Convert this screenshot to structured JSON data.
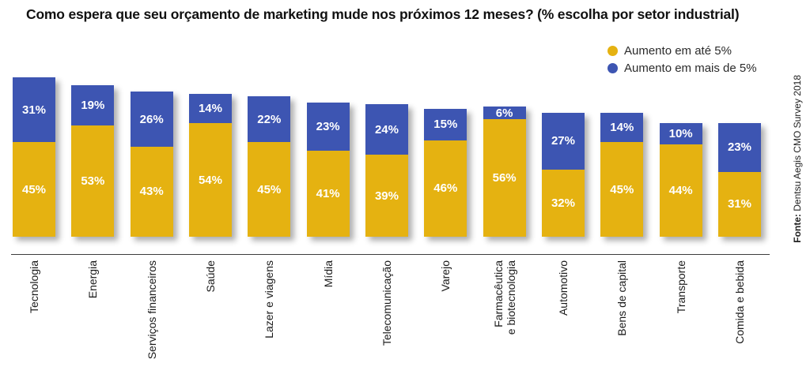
{
  "title": "Como espera que seu orçamento de marketing mude nos próximos 12 meses? (% escolha por setor industrial)",
  "legend": [
    {
      "label": "Aumento em até 5%",
      "color": "#E5B211"
    },
    {
      "label": "Aumento em mais de 5%",
      "color": "#3D55B2"
    }
  ],
  "source": {
    "prefix": "Fonte:",
    "text": " Dentsu Aegis CMO Survey 2018"
  },
  "colors": {
    "yellow": "#E5B211",
    "blue": "#3D55B2",
    "axis": "#3d3d3d",
    "value_text": "#ffffff"
  },
  "chart_data": {
    "type": "bar",
    "stacked": true,
    "title": "Como espera que seu orçamento de marketing mude nos próximos 12 meses? (% escolha por setor industrial)",
    "categories": [
      "Tecnologia",
      "Energia",
      "Serviços financeiros",
      "Saúde",
      "Lazer e viagens",
      "Mídia",
      "Telecomunicação",
      "Varejo",
      "Farmacêutica\ne biotecnologia",
      "Automotivo",
      "Bens de capital",
      "Transporte",
      "Comida e bebida"
    ],
    "series": [
      {
        "name": "Aumento em até 5%",
        "color": "#E5B211",
        "values": [
          45,
          53,
          43,
          54,
          45,
          41,
          39,
          46,
          56,
          32,
          45,
          44,
          31
        ]
      },
      {
        "name": "Aumento em mais de 5%",
        "color": "#3D55B2",
        "values": [
          31,
          19,
          26,
          14,
          22,
          23,
          24,
          15,
          6,
          27,
          14,
          10,
          23
        ]
      }
    ],
    "value_suffix": "%",
    "xlabel": "",
    "ylabel": "",
    "ylim": [
      0,
      80
    ],
    "grid": false,
    "legend_position": "top-right"
  }
}
